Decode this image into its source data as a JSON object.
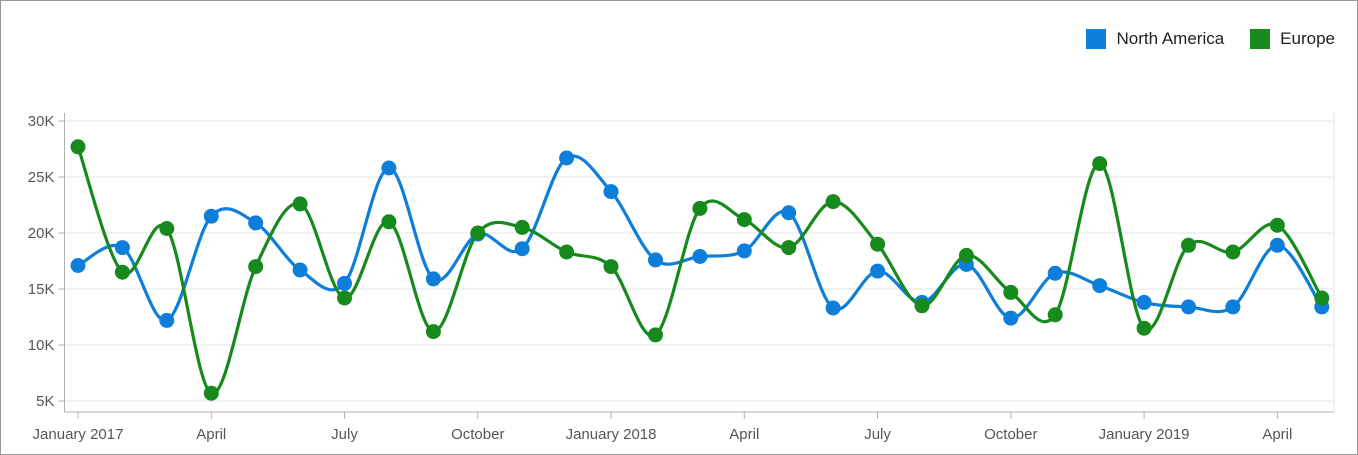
{
  "chart": {
    "background": "#ffffff",
    "border_color": "#999999",
    "gridline_color": "#e4e4e4",
    "axisline_color": "#b0b0b0",
    "tick_color": "#b0b0b0",
    "axis_text_color": "#565656",
    "legend_text_color": "#1f1f1f"
  },
  "legend": {
    "position": "top-right",
    "items": [
      {
        "label": "North America",
        "color": "#0e7edb"
      },
      {
        "label": "Europe",
        "color": "#178a1d"
      }
    ]
  },
  "chart_data": {
    "type": "line",
    "subtype": "spline",
    "markers": true,
    "grid": "horizontal",
    "legend_position": "top-right",
    "title": "",
    "xlabel": "",
    "ylabel": "",
    "unit": "K",
    "ylim": [
      4,
      31
    ],
    "x": [
      "Jan 2017",
      "Feb 2017",
      "Mar 2017",
      "Apr 2017",
      "May 2017",
      "Jun 2017",
      "Jul 2017",
      "Aug 2017",
      "Sep 2017",
      "Oct 2017",
      "Nov 2017",
      "Dec 2017",
      "Jan 2018",
      "Feb 2018",
      "Mar 2018",
      "Apr 2018",
      "May 2018",
      "Jun 2018",
      "Jul 2018",
      "Aug 2018",
      "Sep 2018",
      "Oct 2018",
      "Nov 2018",
      "Dec 2018",
      "Jan 2019",
      "Feb 2019",
      "Mar 2019",
      "Apr 2019",
      "May 2019"
    ],
    "series": [
      {
        "name": "North America",
        "color": "#0e7edb",
        "values": [
          17.1,
          18.7,
          12.2,
          21.5,
          20.9,
          16.7,
          15.5,
          25.8,
          15.9,
          19.9,
          18.6,
          26.7,
          23.7,
          17.6,
          17.9,
          18.4,
          21.8,
          13.3,
          16.6,
          13.8,
          17.2,
          12.4,
          16.4,
          15.3,
          13.8,
          13.4,
          13.4,
          18.9,
          13.4
        ]
      },
      {
        "name": "Europe",
        "color": "#178a1d",
        "values": [
          27.7,
          16.5,
          20.4,
          5.7,
          17.0,
          22.6,
          14.2,
          21.0,
          11.2,
          20.0,
          20.5,
          18.3,
          17.0,
          10.9,
          22.2,
          21.2,
          18.7,
          22.8,
          19.0,
          13.5,
          18.0,
          14.7,
          12.7,
          26.2,
          11.5,
          18.9,
          18.3,
          20.7,
          14.2
        ]
      }
    ],
    "x_axis": {
      "tick_indices": [
        0,
        3,
        6,
        9,
        12,
        15,
        18,
        21,
        24,
        27
      ],
      "tick_labels": [
        "January 2017",
        "April",
        "July",
        "October",
        "January 2018",
        "April",
        "July",
        "October",
        "January 2019",
        "April"
      ]
    },
    "y_axis": {
      "tick_values": [
        30,
        25,
        20,
        15,
        10,
        5
      ],
      "tick_labels": [
        "30K",
        "25K",
        "20K",
        "15K",
        "10K",
        "5K"
      ]
    }
  }
}
